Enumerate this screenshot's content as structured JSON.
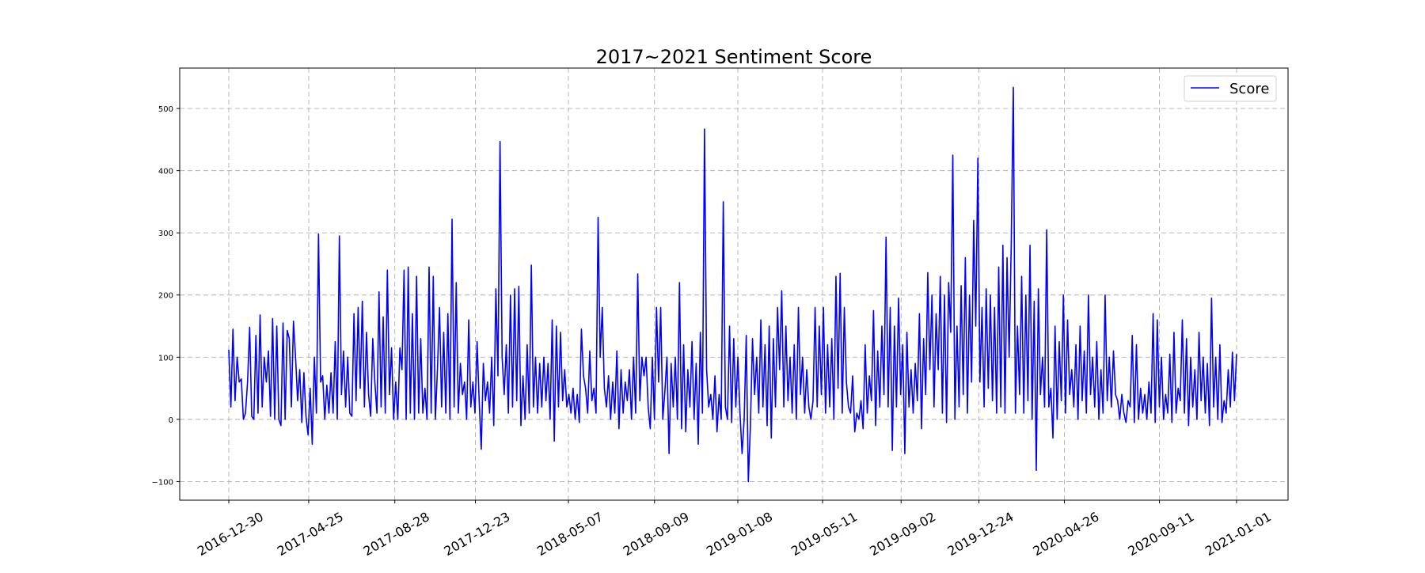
{
  "chart_data": {
    "type": "line",
    "title": "2017~2021 Sentiment Score",
    "xlabel": "",
    "ylabel": "",
    "x_start": "2016-12-30",
    "x_end": "2021-01-01",
    "xticks": [
      "2016-12-30",
      "2017-04-25",
      "2017-08-28",
      "2017-12-23",
      "2018-05-07",
      "2018-09-09",
      "2019-01-08",
      "2019-05-11",
      "2019-09-02",
      "2019-12-24",
      "2020-04-26",
      "2020-09-11",
      "2021-01-01"
    ],
    "yticks": [
      -100,
      0,
      100,
      200,
      300,
      400,
      500
    ],
    "ylim": [
      -130,
      565
    ],
    "grid": true,
    "legend_position": "top-right",
    "series": [
      {
        "name": "Score",
        "color": "#0000ff",
        "values": [
          112,
          20,
          145,
          30,
          100,
          60,
          65,
          0,
          10,
          60,
          148,
          5,
          0,
          135,
          10,
          168,
          20,
          100,
          60,
          110,
          5,
          162,
          0,
          150,
          0,
          -10,
          155,
          0,
          143,
          130,
          20,
          158,
          100,
          30,
          80,
          -5,
          75,
          5,
          -25,
          50,
          -40,
          100,
          10,
          298,
          60,
          70,
          0,
          55,
          10,
          75,
          10,
          125,
          0,
          295,
          40,
          110,
          20,
          100,
          10,
          5,
          170,
          30,
          180,
          50,
          190,
          20,
          140,
          40,
          5,
          130,
          60,
          10,
          205,
          20,
          165,
          10,
          240,
          40,
          115,
          0,
          60,
          0,
          115,
          80,
          240,
          0,
          245,
          10,
          170,
          0,
          230,
          10,
          130,
          10,
          50,
          0,
          245,
          10,
          230,
          0,
          80,
          180,
          20,
          140,
          10,
          170,
          0,
          322,
          20,
          220,
          10,
          90,
          40,
          60,
          0,
          160,
          20,
          60,
          10,
          125,
          30,
          -48,
          90,
          30,
          60,
          10,
          100,
          -10,
          210,
          70,
          447,
          100,
          40,
          120,
          10,
          200,
          20,
          210,
          30,
          214,
          -10,
          70,
          0,
          120,
          10,
          248,
          20,
          100,
          10,
          90,
          20,
          100,
          30,
          90,
          0,
          160,
          -35,
          150,
          20,
          140,
          30,
          80,
          20,
          40,
          10,
          50,
          0,
          40,
          -5,
          145,
          70,
          50,
          10,
          110,
          30,
          50,
          10,
          325,
          100,
          180,
          50,
          20,
          70,
          0,
          60,
          10,
          110,
          -15,
          80,
          10,
          60,
          30,
          80,
          0,
          100,
          10,
          234,
          30,
          100,
          70,
          100,
          20,
          -15,
          100,
          0,
          180,
          60,
          180,
          0,
          45,
          100,
          -55,
          90,
          20,
          100,
          0,
          220,
          -15,
          120,
          -20,
          80,
          20,
          125,
          0,
          90,
          -40,
          140,
          10,
          467,
          80,
          20,
          40,
          0,
          70,
          -20,
          40,
          0,
          350,
          20,
          0,
          150,
          -5,
          130,
          20,
          100,
          10,
          -55,
          0,
          135,
          -100,
          -10,
          130,
          40,
          100,
          10,
          160,
          20,
          120,
          -10,
          150,
          -30,
          130,
          20,
          180,
          80,
          207,
          20,
          150,
          30,
          100,
          10,
          120,
          0,
          180,
          40,
          100,
          10,
          80,
          20,
          0,
          30,
          180,
          20,
          150,
          40,
          180,
          10,
          120,
          20,
          130,
          0,
          230,
          50,
          235,
          10,
          180,
          60,
          20,
          10,
          70,
          -20,
          10,
          0,
          30,
          -15,
          120,
          10,
          70,
          30,
          175,
          -10,
          110,
          20,
          150,
          40,
          293,
          20,
          180,
          -50,
          150,
          20,
          195,
          40,
          120,
          -55,
          140,
          20,
          80,
          10,
          90,
          30,
          170,
          -15,
          130,
          40,
          236,
          80,
          200,
          20,
          170,
          80,
          230,
          10,
          200,
          -5,
          220,
          140,
          425,
          0,
          150,
          20,
          215,
          40,
          260,
          10,
          200,
          60,
          320,
          150,
          420,
          60,
          180,
          20,
          210,
          50,
          200,
          30,
          180,
          10,
          245,
          20,
          280,
          10,
          260,
          100,
          280,
          534,
          10,
          150,
          40,
          230,
          10,
          200,
          30,
          280,
          0,
          190,
          -82,
          210,
          40,
          100,
          20,
          305,
          20,
          50,
          -30,
          150,
          0,
          125,
          30,
          200,
          10,
          160,
          40,
          80,
          20,
          120,
          0,
          150,
          30,
          110,
          10,
          200,
          40,
          100,
          20,
          125,
          0,
          80,
          10,
          200,
          30,
          100,
          20,
          110,
          40,
          30,
          0,
          40,
          10,
          -5,
          30,
          20,
          135,
          -5,
          120,
          0,
          50,
          10,
          40,
          0,
          60,
          10,
          170,
          -5,
          160,
          20,
          100,
          0,
          40,
          10,
          105,
          -5,
          140,
          10,
          50,
          30,
          160,
          10,
          130,
          -10,
          100,
          20,
          80,
          0,
          140,
          30,
          100,
          10,
          90,
          -10,
          195,
          20,
          100,
          0,
          120,
          -5,
          30,
          10,
          80,
          20,
          108,
          30,
          105
        ]
      }
    ]
  }
}
